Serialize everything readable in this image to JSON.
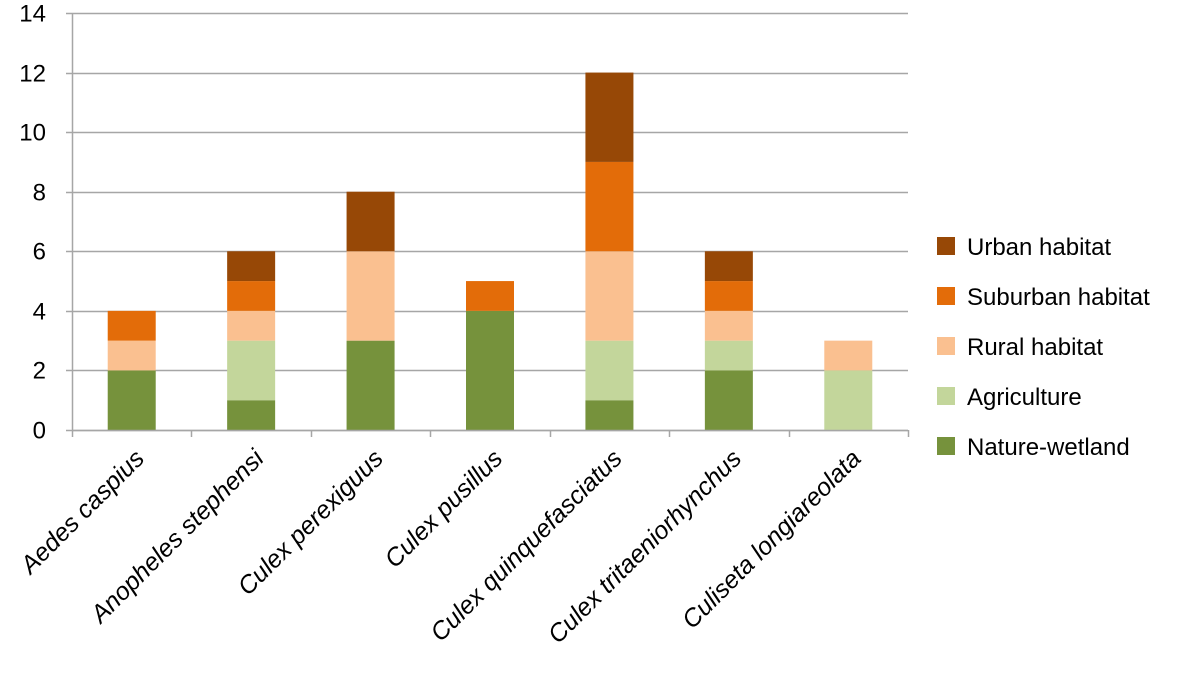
{
  "chart_data": {
    "type": "bar",
    "stacked": true,
    "categories": [
      "Aedes caspius",
      "Anopheles stephensi",
      "Culex perexiguus",
      "Culex pusillus",
      "Culex quinquefasciatus",
      "Culex tritaeniorhynchus",
      "Culiseta longiareolata"
    ],
    "series": [
      {
        "name": "Nature-wetland",
        "color": "#76923C",
        "values": [
          2,
          1,
          3,
          4,
          1,
          2,
          0
        ]
      },
      {
        "name": "Agriculture",
        "color": "#C3D69B",
        "values": [
          0,
          2,
          0,
          0,
          2,
          1,
          2
        ]
      },
      {
        "name": "Rural habitat",
        "color": "#FAC090",
        "values": [
          1,
          1,
          3,
          0,
          3,
          1,
          1
        ]
      },
      {
        "name": "Suburban habitat",
        "color": "#E36C09",
        "values": [
          1,
          1,
          0,
          1,
          3,
          1,
          0
        ]
      },
      {
        "name": "Urban habitat",
        "color": "#974806",
        "values": [
          0,
          1,
          2,
          0,
          3,
          1,
          0
        ]
      }
    ],
    "ylim": [
      0,
      14
    ],
    "yticks": [
      0,
      2,
      4,
      6,
      8,
      10,
      12,
      14
    ],
    "grid": true,
    "legend_position": "right",
    "legend_order": [
      "Urban habitat",
      "Suburban habitat",
      "Rural habitat",
      "Agriculture",
      "Nature-wetland"
    ],
    "title": "",
    "xlabel": "",
    "ylabel": ""
  }
}
